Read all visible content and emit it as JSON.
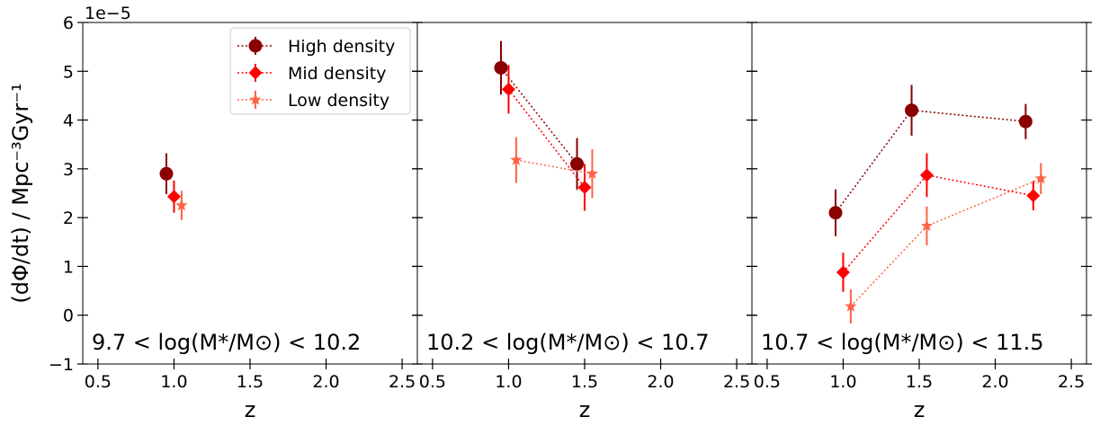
{
  "chart_data": {
    "type": "scatter",
    "y_offset_label": "1e−5",
    "ylabel": "(dΦ/dt) / Mpc⁻³Gyr⁻¹",
    "xlabel": "z",
    "xlim": [
      0.4,
      2.6
    ],
    "ylim": [
      -1,
      6
    ],
    "xticks": [
      "0.5",
      "1.0",
      "1.5",
      "2.0",
      "2.5"
    ],
    "xtick_values": [
      0.5,
      1.0,
      1.5,
      2.0,
      2.5
    ],
    "yticks": [
      "−1",
      "0",
      "1",
      "2",
      "3",
      "4",
      "5",
      "6"
    ],
    "ytick_values": [
      -1,
      0,
      1,
      2,
      3,
      4,
      5,
      6
    ],
    "legend": {
      "placement": "upper-right of first panel",
      "entries": [
        "High density",
        "Mid density",
        "Low density"
      ]
    },
    "series_styles": [
      {
        "marker": "circle",
        "color": "#8b0000"
      },
      {
        "marker": "diamond",
        "color": "#ff0000"
      },
      {
        "marker": "star",
        "color": "#ff6347"
      }
    ],
    "panels": [
      {
        "label": "9.7 < log(M*/M⊙) < 10.2",
        "series": [
          {
            "name": "High density",
            "points": [
              {
                "x": 0.95,
                "y": 2.9,
                "err": 0.42
              }
            ]
          },
          {
            "name": "Mid density",
            "points": [
              {
                "x": 1.0,
                "y": 2.43,
                "err": 0.33
              }
            ]
          },
          {
            "name": "Low density",
            "points": [
              {
                "x": 1.05,
                "y": 2.25,
                "err": 0.3
              }
            ]
          }
        ]
      },
      {
        "label": "10.2 < log(M*/M⊙) < 10.7",
        "series": [
          {
            "name": "High density",
            "points": [
              {
                "x": 0.95,
                "y": 5.07,
                "err": 0.55
              },
              {
                "x": 1.45,
                "y": 3.1,
                "err": 0.53
              }
            ]
          },
          {
            "name": "Mid density",
            "points": [
              {
                "x": 1.0,
                "y": 4.63,
                "err": 0.5
              },
              {
                "x": 1.5,
                "y": 2.62,
                "err": 0.48
              }
            ]
          },
          {
            "name": "Low density",
            "points": [
              {
                "x": 1.05,
                "y": 3.18,
                "err": 0.47
              },
              {
                "x": 1.55,
                "y": 2.9,
                "err": 0.5
              }
            ]
          }
        ]
      },
      {
        "label": "10.7 < log(M*/M⊙) < 11.5",
        "series": [
          {
            "name": "High density",
            "points": [
              {
                "x": 0.95,
                "y": 2.1,
                "err": 0.48
              },
              {
                "x": 1.45,
                "y": 4.2,
                "err": 0.52
              },
              {
                "x": 2.2,
                "y": 3.97,
                "err": 0.36
              }
            ]
          },
          {
            "name": "Mid density",
            "points": [
              {
                "x": 1.0,
                "y": 0.88,
                "err": 0.4
              },
              {
                "x": 1.55,
                "y": 2.87,
                "err": 0.45
              },
              {
                "x": 2.25,
                "y": 2.45,
                "err": 0.3
              }
            ]
          },
          {
            "name": "Low density",
            "points": [
              {
                "x": 1.05,
                "y": 0.18,
                "err": 0.35
              },
              {
                "x": 1.55,
                "y": 1.83,
                "err": 0.4
              },
              {
                "x": 2.3,
                "y": 2.8,
                "err": 0.32
              }
            ]
          }
        ]
      }
    ]
  }
}
